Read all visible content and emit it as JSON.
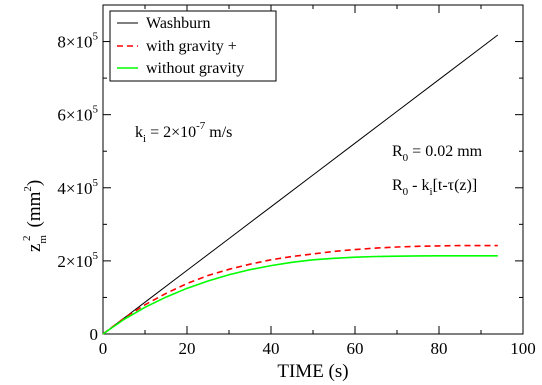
{
  "chart_data": {
    "type": "line",
    "xlabel": "TIME (s)",
    "ylabel": {
      "base": "z",
      "sub": "m",
      "sup": "2",
      "unit_open": "(mm",
      "unit_sup": "2",
      "unit_close": ")"
    },
    "xlim": [
      0,
      100
    ],
    "ylim": [
      0,
      900000
    ],
    "x_ticks": [
      0,
      20,
      40,
      60,
      80,
      100
    ],
    "x_tick_labels": [
      "0",
      "20",
      "40",
      "60",
      "80",
      "100"
    ],
    "y_ticks": [
      0,
      200000,
      400000,
      600000,
      800000
    ],
    "y_tick_labels": [
      {
        "mant": "0",
        "exp": ""
      },
      {
        "mant": "2×10",
        "exp": "5"
      },
      {
        "mant": "4×10",
        "exp": "5"
      },
      {
        "mant": "6×10",
        "exp": "5"
      },
      {
        "mant": "8×10",
        "exp": "5"
      }
    ],
    "grid": false,
    "legend_position": "top-left",
    "series": [
      {
        "name": "Washburn",
        "color": "#000000",
        "dash": "solid",
        "x": [
          0,
          10,
          20,
          30,
          40,
          50,
          60,
          70,
          80,
          90,
          94
        ],
        "y": [
          0,
          87000,
          174000,
          261000,
          348000,
          435000,
          522000,
          609000,
          696000,
          783000,
          818000
        ]
      },
      {
        "name": "with gravity +",
        "color": "#ff0000",
        "dash": "dashed",
        "x": [
          0,
          5,
          10,
          15,
          20,
          25,
          30,
          35,
          40,
          45,
          50,
          55,
          60,
          65,
          70,
          75,
          80,
          85,
          90,
          94
        ],
        "y": [
          0,
          43000,
          80000,
          111000,
          138000,
          160000,
          177000,
          191000,
          203000,
          212000,
          219000,
          226000,
          231000,
          235000,
          238000,
          240000,
          241000,
          242000,
          242000,
          242000
        ]
      },
      {
        "name": "without gravity",
        "color": "#00ff00",
        "dash": "solid",
        "x": [
          0,
          5,
          10,
          15,
          20,
          25,
          30,
          35,
          40,
          45,
          50,
          55,
          60,
          65,
          70,
          75,
          80,
          85,
          90,
          94
        ],
        "y": [
          0,
          40000,
          73000,
          101000,
          125000,
          145000,
          162000,
          176000,
          187000,
          196000,
          203000,
          207000,
          210000,
          212000,
          213000,
          213500,
          214000,
          214000,
          214000,
          214000
        ]
      }
    ],
    "annotations": {
      "ki": {
        "pre": "k",
        "sub": "i",
        "eq": " = 2×10",
        "sup": "-7",
        "unit": " m/s"
      },
      "r0": {
        "pre": "R",
        "sub": "0",
        "rest": " = 0.02 mm"
      },
      "r0expr": {
        "pre": "R",
        "sub": "0",
        "mid": " - k",
        "sub2": "i",
        "rest": "[t-τ(z)]"
      }
    }
  }
}
